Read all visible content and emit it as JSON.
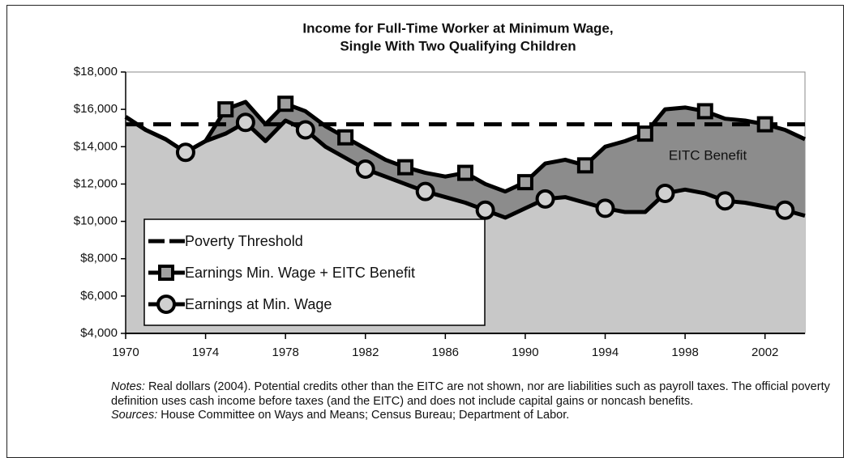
{
  "chart_data": {
    "type": "line",
    "title": [
      "Income for Full-Time Worker at Minimum Wage,",
      "Single With Two Qualifying Children"
    ],
    "x": [
      1970,
      1971,
      1972,
      1973,
      1974,
      1975,
      1976,
      1977,
      1978,
      1979,
      1980,
      1981,
      1982,
      1983,
      1984,
      1985,
      1986,
      1987,
      1988,
      1989,
      1990,
      1991,
      1992,
      1993,
      1994,
      1995,
      1996,
      1997,
      1998,
      1999,
      2000,
      2001,
      2002,
      2003,
      2004
    ],
    "xlim": [
      1970,
      2004
    ],
    "xticks": [
      1970,
      1974,
      1978,
      1982,
      1986,
      1990,
      1994,
      1998,
      2002
    ],
    "ylim": [
      4000,
      18000
    ],
    "yticks": [
      {
        "value": 4000,
        "label": "$4,000"
      },
      {
        "value": 6000,
        "label": "$6,000"
      },
      {
        "value": 8000,
        "label": "$8,000"
      },
      {
        "value": 10000,
        "label": "$10,000"
      },
      {
        "value": 12000,
        "label": "$12,000"
      },
      {
        "value": 14000,
        "label": "$14,000"
      },
      {
        "value": 16000,
        "label": "$16,000"
      },
      {
        "value": 18000,
        "label": "$18,000"
      }
    ],
    "series": [
      {
        "name": "Poverty Threshold",
        "color": "#000000",
        "style": "dashed",
        "values": [
          15200,
          15200,
          15200,
          15200,
          15200,
          15200,
          15200,
          15200,
          15200,
          15200,
          15200,
          15200,
          15200,
          15200,
          15200,
          15200,
          15200,
          15200,
          15200,
          15200,
          15200,
          15200,
          15200,
          15200,
          15200,
          15200,
          15200,
          15200,
          15200,
          15200,
          15200,
          15200,
          15200,
          15200,
          15200
        ]
      },
      {
        "name": "Earnings Min. Wage + EITC Benefit",
        "color": "#000000",
        "marker": "square",
        "fill": "#8c8c8c",
        "values": [
          15600,
          14900,
          14400,
          13700,
          14300,
          16000,
          16400,
          15200,
          16300,
          15900,
          15100,
          14500,
          13900,
          13300,
          12900,
          12600,
          12400,
          12600,
          12000,
          11600,
          12100,
          13100,
          13300,
          13000,
          14000,
          14300,
          14700,
          16000,
          16100,
          15900,
          15500,
          15400,
          15200,
          14900,
          14400
        ]
      },
      {
        "name": "Earnings at Min. Wage",
        "color": "#000000",
        "marker": "circle",
        "fill": "#c8c8c8",
        "values": [
          15600,
          14900,
          14400,
          13700,
          14300,
          14700,
          15300,
          14300,
          15400,
          14900,
          14000,
          13400,
          12800,
          12400,
          12000,
          11600,
          11300,
          11000,
          10600,
          10200,
          10700,
          11200,
          11300,
          11000,
          10700,
          10500,
          10500,
          11500,
          11700,
          11500,
          11100,
          11000,
          10800,
          10600,
          10300
        ]
      }
    ],
    "annotation": "EITC Benefit",
    "legend": "lower left",
    "notes_label": "Notes:",
    "notes": "Real dollars (2004). Potential credits other than the EITC are not shown, nor are liabilities such as payroll taxes. The official poverty definition uses cash income before taxes (and the EITC) and does not include capital gains or noncash benefits.",
    "sources_label": "Sources:",
    "sources": "House Committee on Ways and Means; Census Bureau; Department of Labor."
  }
}
